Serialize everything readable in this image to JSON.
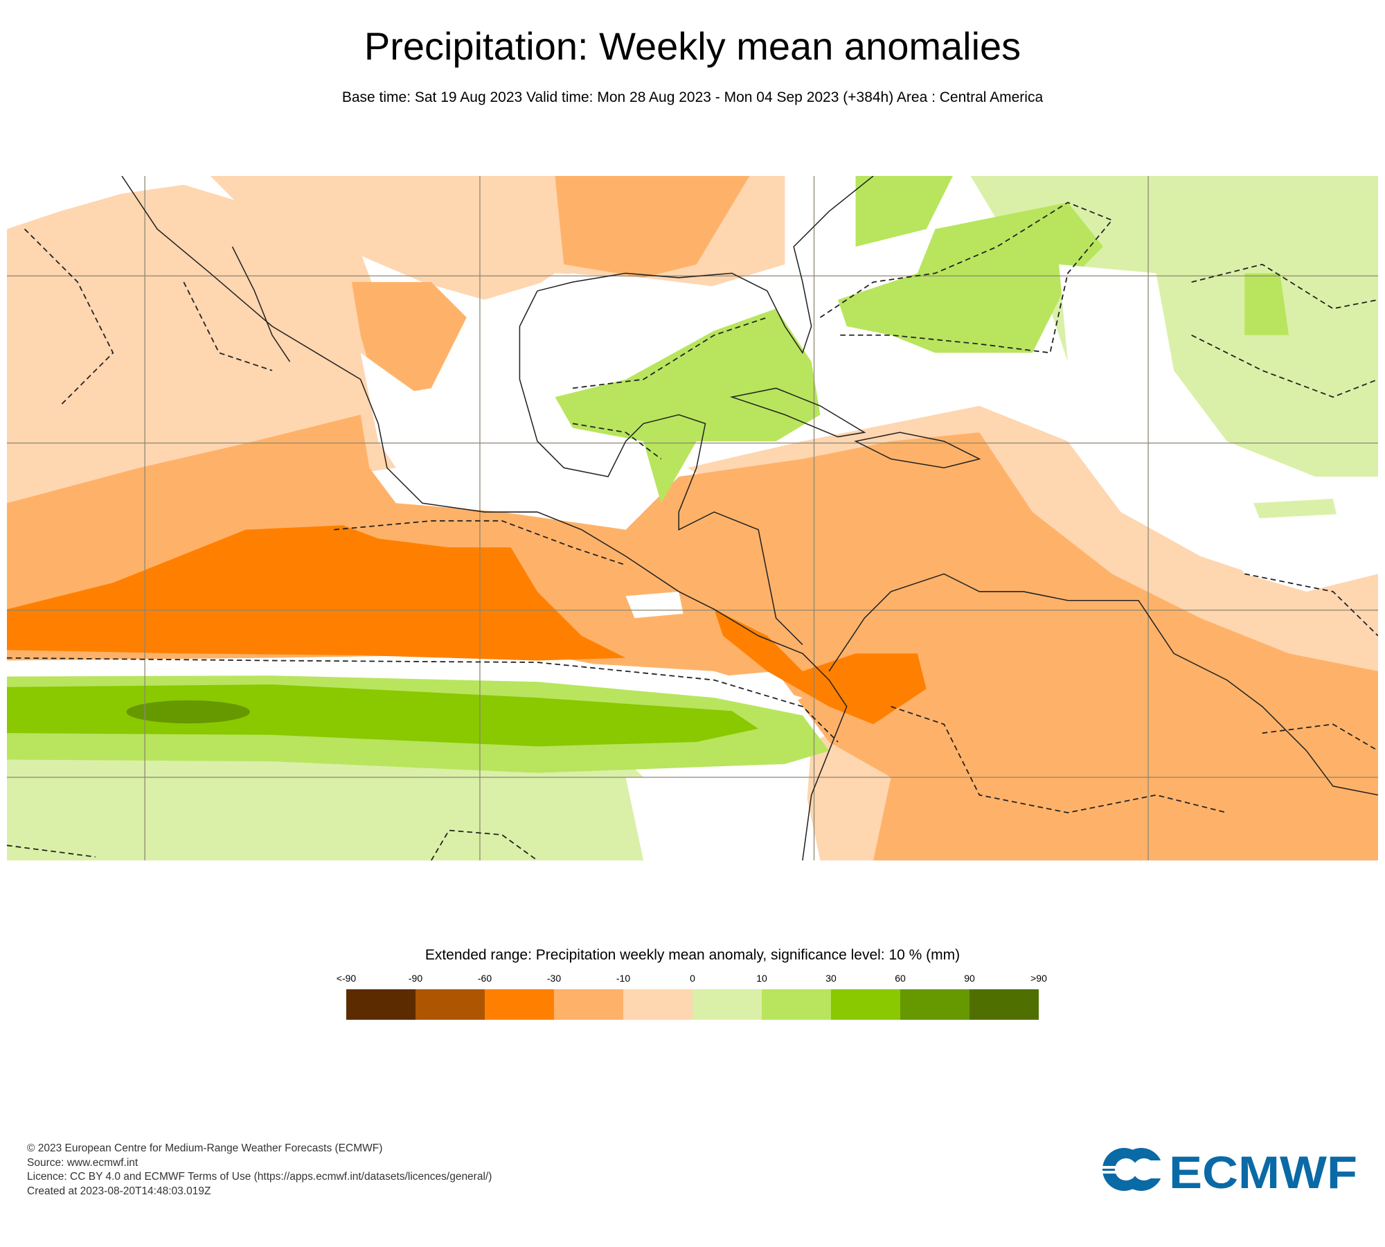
{
  "header": {
    "title": "Precipitation: Weekly mean anomalies",
    "subtitle": "Base time: Sat 19 Aug 2023 Valid time: Mon 28 Aug 2023 - Mon 04 Sep 2023 (+384h) Area : Central America"
  },
  "legend": {
    "title": "Extended range: Precipitation weekly mean anomaly, significance level: 10 % (mm)",
    "ticks": [
      "<-90",
      "-90",
      "-60",
      "-30",
      "-10",
      "0",
      "10",
      "30",
      "60",
      "90",
      ">90"
    ],
    "colors": [
      "#5c2c00",
      "#ad5500",
      "#ff8000",
      "#feb269",
      "#fed6b0",
      "#daf0a8",
      "#b8e55d",
      "#8ac800",
      "#669800",
      "#4f7000"
    ]
  },
  "footer": {
    "lines": [
      "© 2023 European Centre for Medium-Range Weather Forecasts (ECMWF)",
      "Source: www.ecmwf.int",
      "Licence: CC BY 4.0 and ECMWF Terms of Use (https://apps.ecmwf.int/datasets/licences/general/)",
      "Created at 2023-08-20T14:48:03.019Z"
    ],
    "logo_text": "ECMWF"
  }
}
